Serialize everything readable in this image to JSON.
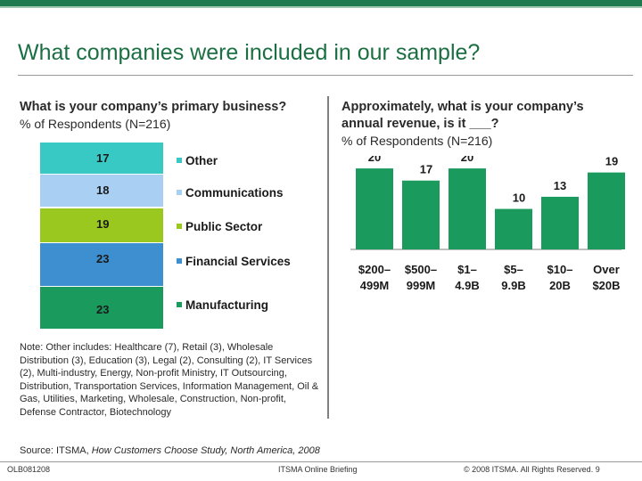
{
  "title": "What companies were included in our sample?",
  "left": {
    "question": "What is your company’s primary business?",
    "subtitle": "% of Respondents (N=216)"
  },
  "right": {
    "question_line1": "Approximately, what is your company’s",
    "question_line2": "annual revenue, is it ___?",
    "subtitle": "% of Respondents (N=216)"
  },
  "note": "Note: Other includes: Healthcare (7), Retail (3), Wholesale Distribution (3), Education (3), Legal (2), Consulting (2), IT Services (2), Multi-industry, Energy, Non-profit Ministry, IT Outsourcing, Distribution, Transportation Services, Information Management, Oil & Gas, Utilities, Marketing, Wholesale, Construction, Non-profit, Defense Contractor, Biotechnology",
  "source": {
    "prefix": "Source: ITSMA,",
    "italic": "How Customers Choose Study, North America, 2008"
  },
  "footer": {
    "left": "OLB081208",
    "center": "ITSMA Online Briefing",
    "right": "© 2008 ITSMA. All Rights Reserved. 9"
  },
  "colors": {
    "brand_green": "#1e7a4e",
    "bar_green": "#1b9a5e"
  },
  "chart_data": [
    {
      "type": "bar",
      "orientation": "stacked-100",
      "title": "What is your company’s primary business?",
      "subtitle": "% of Respondents (N=216)",
      "categories": [
        "Other",
        "Communications",
        "Public Sector",
        "Financial Services",
        "Manufacturing"
      ],
      "values": [
        17,
        18,
        19,
        23,
        23
      ],
      "colors": [
        "#38c9c5",
        "#a9d0f3",
        "#9ac81e",
        "#3d8fd0",
        "#1b9a5e"
      ],
      "legend_position": "right"
    },
    {
      "type": "bar",
      "title": "Approximately, what is your company’s annual revenue, is it ___?",
      "subtitle": "% of Respondents (N=216)",
      "categories_line1": [
        "$200–",
        "$500–",
        "$1–",
        "$5–",
        "$10–",
        "Over"
      ],
      "categories_line2": [
        "499M",
        "999M",
        "4.9B",
        "9.9B",
        "20B",
        "$20B"
      ],
      "values": [
        20,
        17,
        20,
        10,
        13,
        19
      ],
      "ylim": [
        0,
        22
      ],
      "grid": false
    }
  ]
}
